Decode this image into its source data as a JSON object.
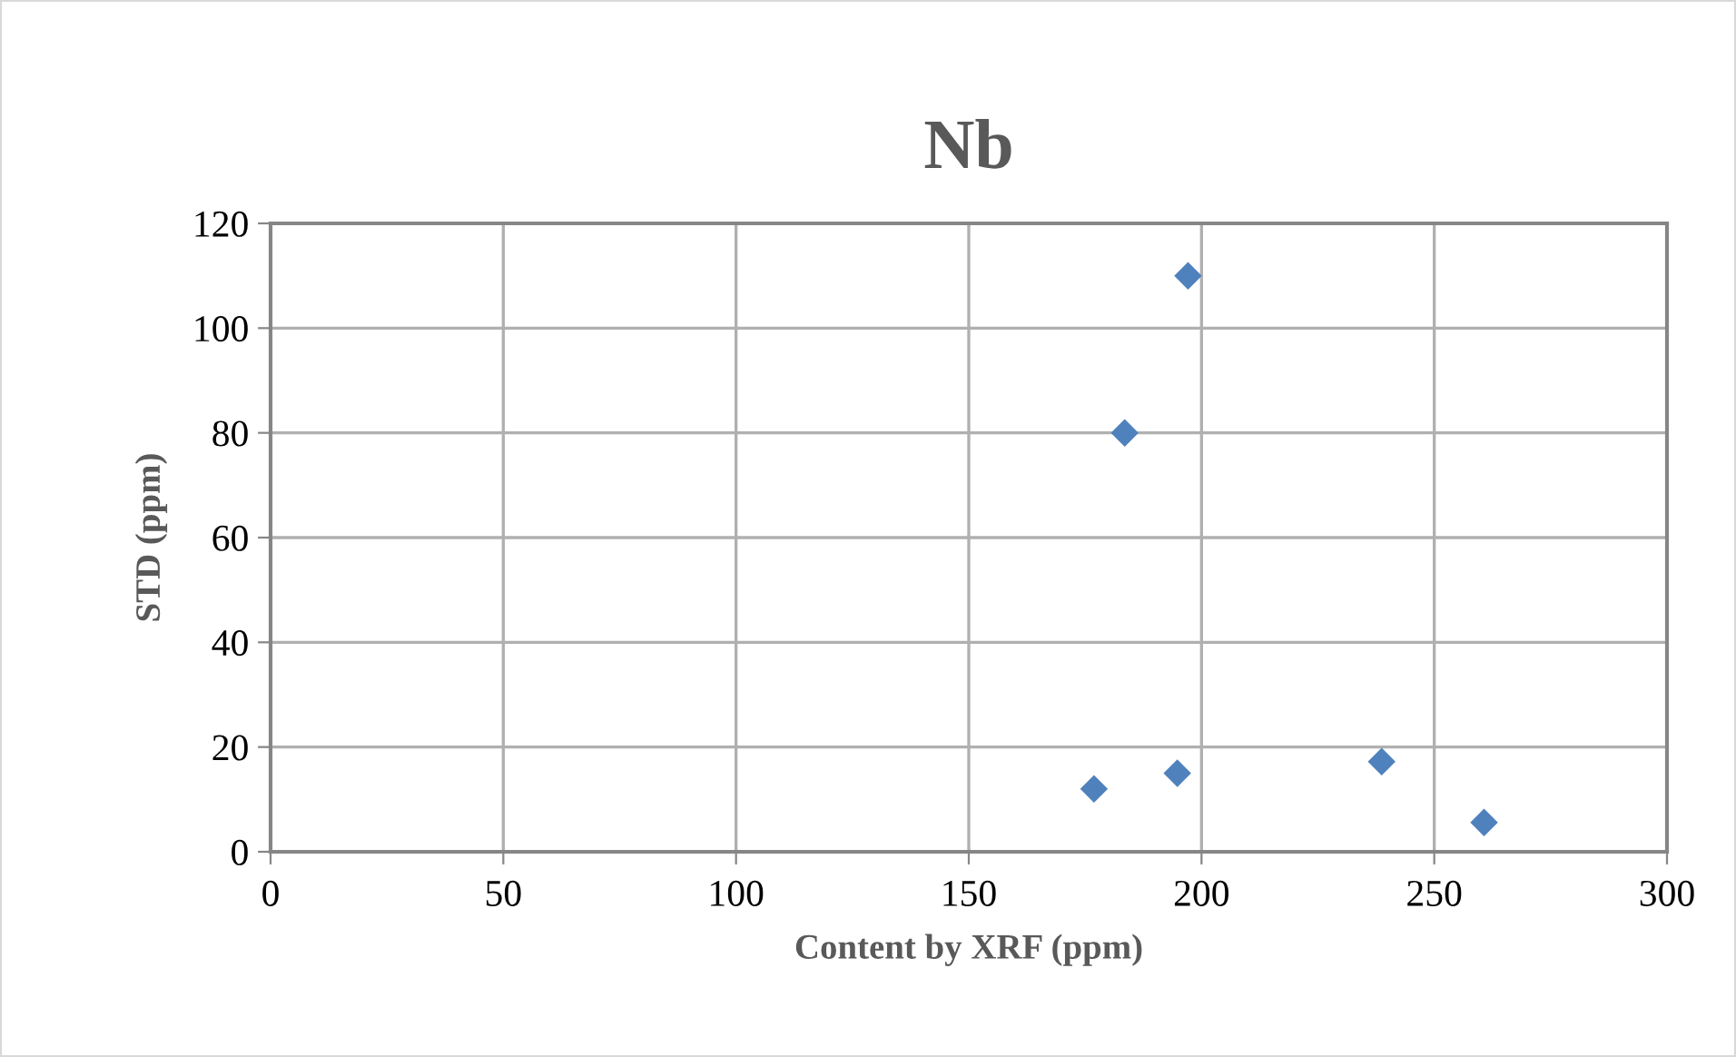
{
  "chart_data": {
    "type": "scatter",
    "title": "Nb",
    "xlabel": "Content by XRF (ppm)",
    "ylabel": "STD (ppm)",
    "series": [
      {
        "color": "#4f81bd",
        "x": [
          176.9,
          183.5,
          197.1,
          194.8,
          238.7,
          260.7
        ],
        "values": [
          12.0,
          80,
          110,
          15.0,
          17.2,
          5.6
        ]
      }
    ],
    "xlim": [
      0,
      300
    ],
    "xticks": [
      0,
      50,
      100,
      150,
      200,
      250,
      300
    ],
    "ylim": [
      0,
      120
    ],
    "yticks": [
      0,
      20,
      40,
      60,
      80,
      100,
      120
    ],
    "grid": true,
    "marker": "diamond"
  }
}
